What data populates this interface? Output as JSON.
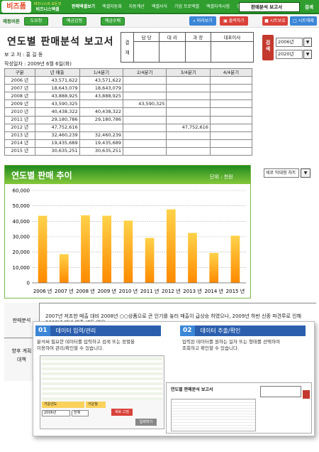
{
  "brand": {
    "logo": "비즈폼",
    "sub_logo_top": "비즈니스의 모든것",
    "sub_logo": "비즈니스엑셀"
  },
  "menu": [
    "판매엑셀보기",
    "엑셀자동화",
    "자동계산",
    "엑셀서식",
    "기업 프로엑셀",
    "엑셀자격시험",
    "경리실무"
  ],
  "top_select": "판매분석 보고서",
  "top_go": "검색",
  "edit_label": "예등버튼",
  "green_buttons": [
    "도요청",
    "예금감정",
    "예금수매"
  ],
  "tool_buttons": {
    "view": "미리보기",
    "print": "출력하기",
    "sheet": "시트보호",
    "unprotect": "시트해제"
  },
  "report": {
    "title": "연도별 판매분석 보고서",
    "writer": "보 고 자 : 홍 길 동",
    "date": "작성일자 : 2009년 6월 6일(화)"
  },
  "approval": {
    "label": "결\n재",
    "roles": [
      "담 당",
      "대 리",
      "과 장",
      "대표이사"
    ]
  },
  "search": {
    "label": "검\n색",
    "from": "2006년",
    "to": "2020년"
  },
  "table": {
    "headers": [
      "구분",
      "년 매출",
      "1/4분기",
      "2/4분기",
      "3/4분기",
      "4/4분기"
    ],
    "rows": [
      [
        "2006 년",
        "43,571,622",
        "43,571,622",
        "",
        "",
        ""
      ],
      [
        "2007 년",
        "18,643,079",
        "18,643,079",
        "",
        "",
        ""
      ],
      [
        "2008 년",
        "43,888,925",
        "43,888,925",
        "",
        "",
        ""
      ],
      [
        "2009 년",
        "43,590,325",
        "",
        "43,590,325",
        "",
        ""
      ],
      [
        "2010 년",
        "40,438,322",
        "40,438,322",
        "",
        "",
        ""
      ],
      [
        "2011 년",
        "29,180,786",
        "29,180,786",
        "",
        "",
        ""
      ],
      [
        "2012 년",
        "47,752,616",
        "",
        "",
        "47,752,616",
        ""
      ],
      [
        "2013 년",
        "32,460,239",
        "32,460,239",
        "",
        "",
        ""
      ],
      [
        "2014 년",
        "19,435,689",
        "19,435,689",
        "",
        "",
        ""
      ],
      [
        "2015 년",
        "30,635,251",
        "30,635,251",
        "",
        "",
        ""
      ]
    ]
  },
  "chart_title": "연도별 판매 추이",
  "chart_unit": "단위 : 천원",
  "chart_type_select": "세로 막대형 차트",
  "chart_data": {
    "type": "bar",
    "categories": [
      "2006 년",
      "2007 년",
      "2008 년",
      "2009 년",
      "2010 년",
      "2011 년",
      "2012 년",
      "2013 년",
      "2014 년",
      "2015 년"
    ],
    "values": [
      43572,
      18643,
      43889,
      43590,
      40438,
      29181,
      47753,
      32460,
      19436,
      30635
    ],
    "yticks": [
      "0",
      "10,000",
      "20,000",
      "30,000",
      "40,000",
      "50,000",
      "60,000"
    ],
    "ylim": [
      0,
      60000
    ],
    "grid": true,
    "colors": {
      "bar_top": "#ffd24a",
      "bar_bottom": "#ff8a00",
      "grid": "#bbbbbb"
    }
  },
  "analysis": {
    "label": "판매분석",
    "label2": "향후 계획\n대책",
    "text": "2007년 저조한 매출 대비 2008년 ○○상품으로 큰 인기를 놓러 매출이 급상승 하였으나, 2009년 하반 신종 파견루로 인해 2008년 대비 매출 변동 없음"
  },
  "popup": {
    "step1": {
      "num": "01",
      "title": "데이터 입력/관리",
      "desc": "분석써 필요한 데이터를 입력하고 검색 또는 정렬을\n이용하여 관리/확인할 수 있습니다."
    },
    "step2": {
      "num": "02",
      "title": "데이터 추출/확인",
      "desc": "입력된 데이터를 원하는 일자 또는 형태를 선택하여\n조회하고 확인할 수 있습니다."
    },
    "thumb1": {
      "labels": [
        "거운년도",
        "거운월"
      ],
      "year": "2006년",
      "month": "전체",
      "btn_red": "새로 고침",
      "btn_gray": "입력하기"
    },
    "thumb2": {
      "title": "연도별 판매분석 보고서"
    }
  }
}
